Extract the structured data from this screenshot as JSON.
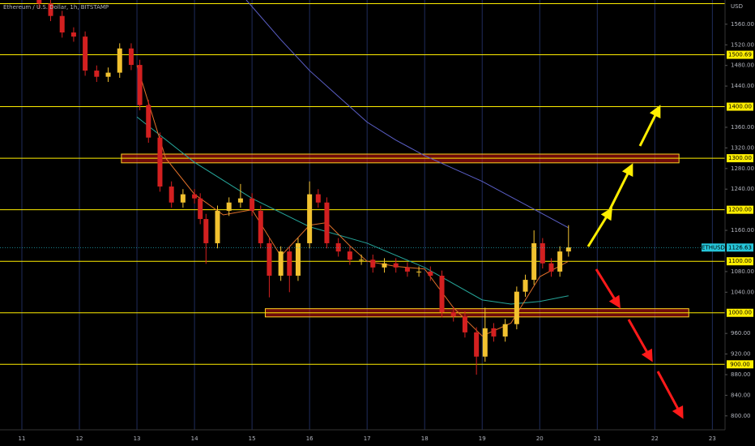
{
  "chart_data": {
    "type": "candlestick",
    "title": "Ethereum / U.S. Dollar, 1h, BITSTAMP",
    "y_axis_label": "USD",
    "up_color": "#f2c230",
    "down_color": "#d32020",
    "x": [
      11.3,
      11.5,
      11.7,
      11.9,
      12.1,
      12.3,
      12.5,
      12.7,
      12.9,
      13.05,
      13.2,
      13.4,
      13.6,
      13.8,
      14.0,
      14.1,
      14.2,
      14.4,
      14.6,
      14.8,
      15.0,
      15.15,
      15.3,
      15.5,
      15.65,
      15.8,
      16.0,
      16.15,
      16.3,
      16.5,
      16.7,
      16.9,
      17.1,
      17.3,
      17.5,
      17.7,
      17.9,
      18.1,
      18.3,
      18.5,
      18.7,
      18.9,
      19.05,
      19.2,
      19.4,
      19.6,
      19.75,
      19.9,
      20.05,
      20.2,
      20.35,
      20.5
    ],
    "open": [
      1610,
      1600,
      1576,
      1544,
      1536,
      1470,
      1458,
      1466,
      1513,
      1481,
      1403,
      1340,
      1245,
      1214,
      1230,
      1222,
      1182,
      1135,
      1198,
      1214,
      1222,
      1198,
      1135,
      1072,
      1119,
      1072,
      1135,
      1230,
      1214,
      1135,
      1119,
      1103,
      1103,
      1088,
      1096,
      1088,
      1080,
      1080,
      1072,
      1001,
      993,
      962,
      915,
      970,
      954,
      978,
      1041,
      1064,
      1135,
      1096,
      1080,
      1119
    ],
    "high": [
      1620,
      1610,
      1586,
      1554,
      1546,
      1480,
      1476,
      1523,
      1523,
      1491,
      1413,
      1350,
      1255,
      1240,
      1240,
      1232,
      1192,
      1208,
      1224,
      1250,
      1232,
      1208,
      1145,
      1129,
      1129,
      1145,
      1255,
      1240,
      1224,
      1145,
      1129,
      1113,
      1113,
      1106,
      1106,
      1098,
      1090,
      1090,
      1082,
      1011,
      1003,
      972,
      1010,
      980,
      988,
      1051,
      1074,
      1160,
      1145,
      1106,
      1129,
      1170
    ],
    "low": [
      1590,
      1566,
      1534,
      1526,
      1460,
      1448,
      1448,
      1456,
      1471,
      1393,
      1330,
      1235,
      1204,
      1204,
      1212,
      1172,
      1095,
      1125,
      1188,
      1204,
      1188,
      1125,
      1030,
      1062,
      1040,
      1062,
      1125,
      1204,
      1125,
      1109,
      1093,
      1093,
      1078,
      1078,
      1078,
      1070,
      1070,
      1062,
      991,
      983,
      952,
      880,
      905,
      944,
      944,
      968,
      1031,
      1054,
      1086,
      1070,
      1070,
      1109
    ],
    "close": [
      1600,
      1576,
      1544,
      1536,
      1470,
      1458,
      1466,
      1513,
      1481,
      1403,
      1340,
      1245,
      1214,
      1230,
      1222,
      1182,
      1135,
      1198,
      1214,
      1222,
      1198,
      1135,
      1072,
      1119,
      1072,
      1135,
      1230,
      1214,
      1135,
      1119,
      1103,
      1103,
      1088,
      1096,
      1088,
      1080,
      1080,
      1072,
      1001,
      993,
      962,
      915,
      970,
      954,
      978,
      1041,
      1064,
      1135,
      1096,
      1080,
      1119,
      1127
    ],
    "series": [
      {
        "color": "#5b5fc7",
        "x": [
          14.9,
          15.5,
          16,
          16.5,
          17,
          17.5,
          18,
          18.5,
          19,
          19.5,
          20,
          20.5
        ],
        "values": [
          1607,
          1530,
          1470,
          1420,
          1370,
          1335,
          1305,
          1280,
          1255,
          1225,
          1195,
          1165
        ]
      },
      {
        "color": "#26a69a",
        "x": [
          13.0,
          14.0,
          15.0,
          16.0,
          17.0,
          18.0,
          19.0,
          19.5,
          20.0,
          20.5
        ],
        "values": [
          1380,
          1292,
          1222,
          1167,
          1135,
          1088,
          1025,
          1017,
          1022,
          1033
        ]
      },
      {
        "color": "#e0702a",
        "x": [
          13.0,
          13.5,
          14,
          14.5,
          15,
          15.5,
          16,
          16.3,
          16.7,
          17,
          17.5,
          18,
          18.5,
          19,
          19.5,
          20,
          20.5
        ],
        "values": [
          1480,
          1300,
          1230,
          1190,
          1200,
          1110,
          1170,
          1175,
          1130,
          1100,
          1090,
          1085,
          1010,
          955,
          980,
          1070,
          1100
        ]
      }
    ],
    "levels": [
      {
        "value": 1600
      },
      {
        "value": 1500.69,
        "label": "1500.69"
      },
      {
        "value": 1400,
        "label": "1400.00"
      },
      {
        "value": 1300,
        "label": "1300.00"
      },
      {
        "value": 1200,
        "label": "1200.00"
      },
      {
        "value": 1100,
        "label": "1100.00"
      },
      {
        "value": 1000,
        "label": "1000.00"
      },
      {
        "value": 900,
        "label": "900.00"
      }
    ],
    "zones": [
      {
        "from": 1291,
        "to": 1308,
        "x": [
          12.73,
          22.42
        ]
      },
      {
        "from": 992,
        "to": 1008,
        "x": [
          15.23,
          22.59
        ]
      }
    ],
    "last_price": {
      "label": "ETHUSD",
      "value": 1126.63
    },
    "xlim": [
      10.62,
      23.22
    ],
    "ylim": [
      773,
      1607
    ],
    "xticks": [
      11,
      12,
      13,
      14,
      15,
      16,
      17,
      18,
      19,
      20,
      21,
      22,
      23
    ],
    "yticks": [
      {
        "value": 800,
        "label": "800.00"
      },
      {
        "value": 840,
        "label": "840.00"
      },
      {
        "value": 880,
        "label": "880.00"
      },
      {
        "value": 920,
        "label": "920.00"
      },
      {
        "value": 960,
        "label": "960.00"
      },
      {
        "value": 1040,
        "label": "1040.00"
      },
      {
        "value": 1080,
        "label": "1080.00"
      },
      {
        "value": 1160,
        "label": "1160.00"
      },
      {
        "value": 1240,
        "label": "1240.00"
      },
      {
        "value": 1280,
        "label": "1280.00"
      },
      {
        "value": 1320,
        "label": "1320.00"
      },
      {
        "value": 1360,
        "label": "1360.00"
      },
      {
        "value": 1440,
        "label": "1440.00"
      },
      {
        "value": 1480,
        "label": "1480.00"
      },
      {
        "value": 1520,
        "label": "1520.00"
      },
      {
        "value": 1560,
        "label": "1560.00"
      }
    ],
    "grid": true
  }
}
